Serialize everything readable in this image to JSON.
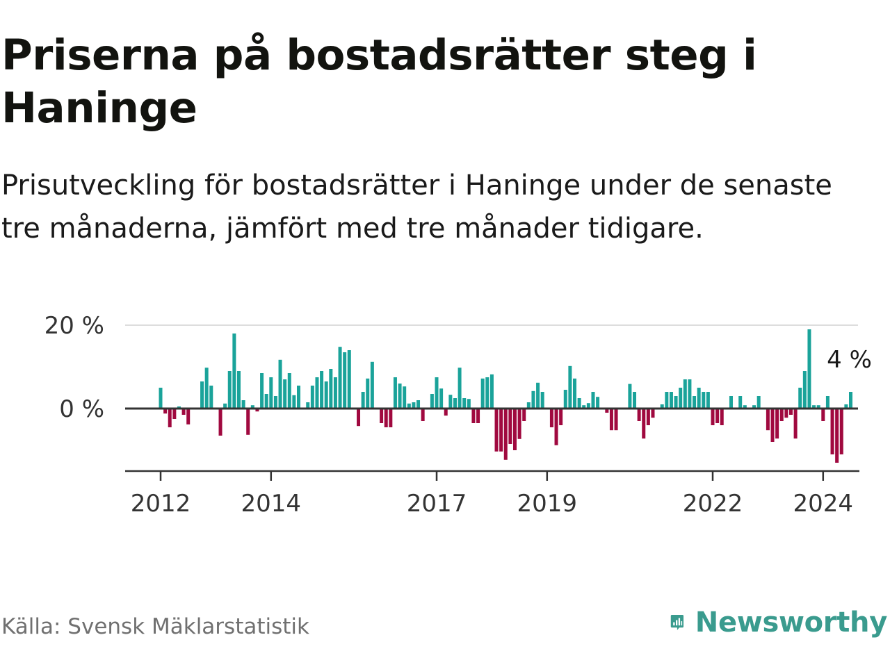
{
  "header": {
    "title": "Priserna på bostadsrätter steg i Haninge",
    "subtitle": "Prisutveckling för bostadsrätter i Haninge under de senaste tre månaderna, jämfört med tre månader tidigare."
  },
  "footer": {
    "source": "Källa: Svensk Mäklarstatistik",
    "brand": "Newsworthy"
  },
  "colors": {
    "positive": "#1aa39a",
    "negative": "#a0093f",
    "gridline": "#dddddd",
    "zeroline": "#333333",
    "brand": "#3a9b8e"
  },
  "icons": {
    "brand_logo": "bar-chart-speech-bubble-icon"
  },
  "chart_data": {
    "type": "bar",
    "title": "Priserna på bostadsrätter steg i Haninge",
    "subtitle": "Prisutveckling för bostadsrätter i Haninge under de senaste tre månaderna, jämfört med tre månader tidigare.",
    "unit": "%",
    "start": "2012-01",
    "frequency": "monthly",
    "ylim": [
      -15,
      20
    ],
    "yticks": [
      {
        "value": 20,
        "label": "20 %"
      },
      {
        "value": 0,
        "label": "0 %"
      }
    ],
    "xticks": [
      {
        "year": 2012,
        "label": "2012"
      },
      {
        "year": 2014,
        "label": "2014"
      },
      {
        "year": 2017,
        "label": "2017"
      },
      {
        "year": 2019,
        "label": "2019"
      },
      {
        "year": 2022,
        "label": "2022"
      },
      {
        "year": 2024,
        "label": "2024"
      }
    ],
    "values": [
      5,
      -1.2,
      -4.5,
      -2.5,
      0.5,
      -1.5,
      -3.8,
      0,
      0,
      6.5,
      9.8,
      5.5,
      0,
      -6.5,
      1.2,
      9,
      18,
      9,
      2,
      -6.3,
      0.8,
      -0.7,
      8.5,
      3.5,
      7.5,
      3,
      11.7,
      7,
      8.5,
      3.2,
      5.5,
      0,
      1.5,
      5.5,
      7.5,
      9,
      6.5,
      9.5,
      7.5,
      14.8,
      13.5,
      14,
      0,
      -4.2,
      4,
      7.2,
      11.2,
      0,
      -3.5,
      -4.5,
      -4.5,
      7.5,
      6,
      5.3,
      1.2,
      1.5,
      2,
      -3,
      0,
      3.5,
      7.5,
      4.8,
      -1.7,
      3.3,
      2.5,
      9.8,
      2.5,
      2.3,
      -3.5,
      -3.5,
      7.2,
      7.5,
      8.2,
      -10.3,
      -10.3,
      -12.3,
      -8.5,
      -10,
      -7.3,
      -3,
      1.5,
      4.2,
      6.2,
      4,
      0,
      -4.5,
      -8.8,
      -4,
      4.5,
      10.2,
      7.2,
      2.5,
      0.8,
      1.3,
      4,
      2.8,
      0,
      -1,
      -5.2,
      -5.2,
      0,
      0,
      5.9,
      4,
      -3,
      -7.2,
      -4,
      -2.2,
      0,
      1,
      4,
      4,
      3,
      5,
      7,
      7,
      3,
      5,
      4,
      4,
      -4,
      -3.5,
      -4,
      0,
      3,
      0,
      3,
      0.8,
      0,
      0.8,
      3,
      0,
      -5.2,
      -8,
      -7.2,
      -3,
      -2.2,
      -1.5,
      -7.2,
      5,
      9,
      19,
      0.8,
      0.8,
      -3,
      3,
      -11,
      -13,
      -11,
      1,
      4
    ],
    "annotation": {
      "label": "4 %",
      "value": 4,
      "position": "last-bar"
    }
  }
}
